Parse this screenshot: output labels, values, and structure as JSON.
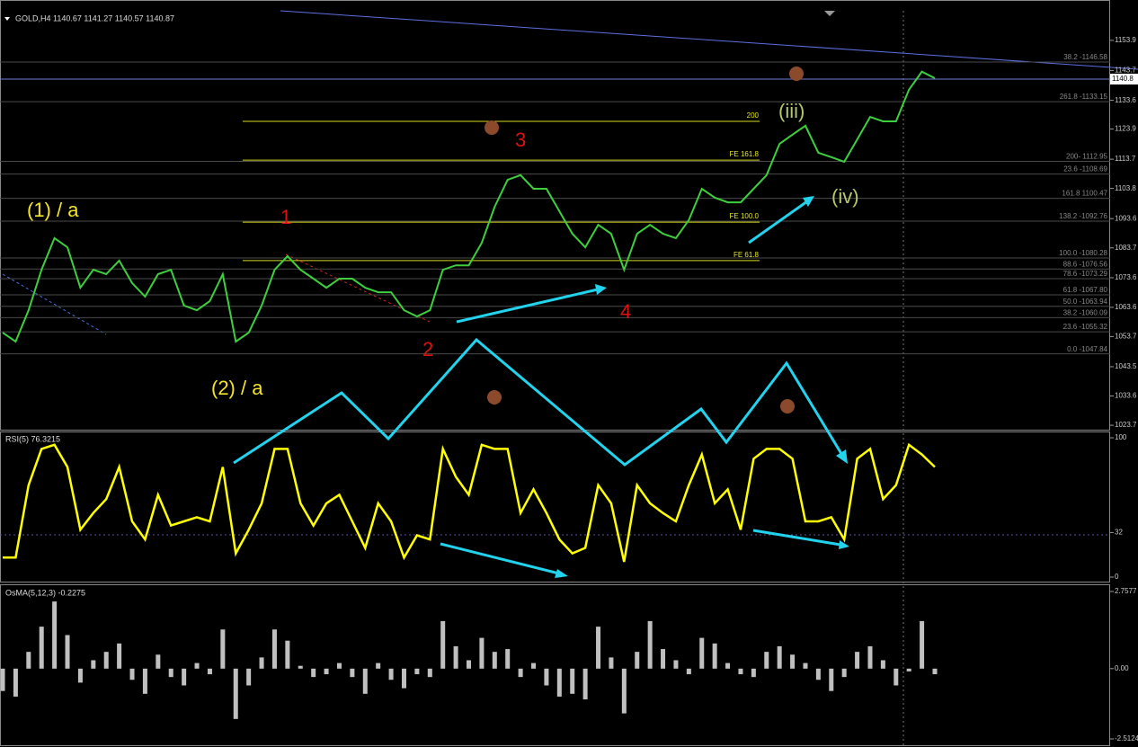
{
  "chart_data": [
    {
      "type": "line",
      "title": "GOLD,H4  1140.67 1141.27 1140.57 1140.87",
      "color": "#3ecf3e",
      "values": [
        1055.0,
        1052.0,
        1062.6,
        1076.3,
        1087.0,
        1083.9,
        1070.2,
        1076.3,
        1074.8,
        1079.4,
        1071.8,
        1067.2,
        1074.8,
        1076.3,
        1064.2,
        1062.6,
        1065.7,
        1074.8,
        1052.0,
        1055.0,
        1064.2,
        1076.3,
        1080.9,
        1076.3,
        1073.3,
        1070.2,
        1073.3,
        1073.3,
        1070.2,
        1068.7,
        1068.7,
        1062.6,
        1060.5,
        1062.6,
        1076.3,
        1077.8,
        1077.8,
        1085.4,
        1097.6,
        1106.7,
        1108.3,
        1103.7,
        1103.7,
        1096.1,
        1088.5,
        1083.9,
        1091.5,
        1088.5,
        1076.3,
        1088.5,
        1091.5,
        1088.5,
        1087.0,
        1093.1,
        1103.7,
        1100.7,
        1099.1,
        1099.1,
        1103.7,
        1108.3,
        1118.9,
        1122.0,
        1125.0,
        1115.9,
        1114.4,
        1112.8,
        1120.4,
        1128.0,
        1126.5,
        1126.5,
        1137.2,
        1143.3,
        1141.1
      ],
      "ylim": [
        1022.2,
        1163.9
      ],
      "yticks": [
        1153.9,
        1143.7,
        1133.6,
        1123.9,
        1113.7,
        1103.8,
        1093.6,
        1083.7,
        1073.6,
        1063.6,
        1053.7,
        1043.5,
        1033.6,
        1023.7
      ],
      "last_price": 1140.8,
      "fib_levels": [
        {
          "value": 1146.58,
          "label": "38.2 -1146.58"
        },
        {
          "value": 1133.15,
          "label": "261.8 -1133.15"
        },
        {
          "value": 1112.95,
          "label": "200- 1112.95"
        },
        {
          "value": 1108.69,
          "label": "23.6 -1108.69"
        },
        {
          "value": 1100.47,
          "label": "161.8 1100.47"
        },
        {
          "value": 1092.76,
          "label": "138.2 -1092.76"
        },
        {
          "value": 1080.28,
          "label": "100.0 -1080.28"
        },
        {
          "value": 1076.56,
          "label": "88.6 -1076.56"
        },
        {
          "value": 1073.29,
          "label": "78.6 -1073.29"
        },
        {
          "value": 1067.8,
          "label": "61.8 -1067.80"
        },
        {
          "value": 1063.94,
          "label": "50.0 -1063.94"
        },
        {
          "value": 1060.09,
          "label": "38.2 -1060.09"
        },
        {
          "value": 1055.32,
          "label": "23.6 -1055.32"
        },
        {
          "value": 1047.84,
          "label": "0.0 -1047.84"
        }
      ],
      "fe_levels": [
        {
          "value": 1126.5,
          "label": "200"
        },
        {
          "value": 1113.4,
          "label": "FE 161.8"
        },
        {
          "value": 1092.4,
          "label": "FE 100.0"
        },
        {
          "value": 1079.4,
          "label": "FE 61.8"
        }
      ],
      "wave_labels": [
        "(1) / a",
        "(2) / a",
        "1",
        "2",
        "3",
        "4",
        "(iii)",
        "(iv)"
      ]
    },
    {
      "type": "line",
      "title": "RSI(5) 76.3215",
      "color": "#ffff00",
      "values": [
        14,
        14,
        66,
        92,
        95,
        79,
        34,
        46,
        56,
        79,
        40,
        27,
        59,
        37,
        40,
        43,
        40,
        79,
        17,
        34,
        53,
        92,
        92,
        53,
        37,
        53,
        59,
        40,
        21,
        53,
        40,
        14,
        30,
        27,
        92,
        72,
        59,
        95,
        92,
        92,
        46,
        63,
        46,
        27,
        17,
        21,
        66,
        53,
        11,
        66,
        53,
        46,
        40,
        66,
        88,
        53,
        63,
        34,
        85,
        92,
        92,
        85,
        40,
        40,
        43,
        27,
        85,
        92,
        56,
        66,
        95,
        88,
        79
      ],
      "ylim": [
        0,
        100
      ],
      "yticks": [
        100,
        32,
        0
      ]
    },
    {
      "type": "bar",
      "title": "OsMA(5,12,3) -0.2275",
      "color": "#c0c0c0",
      "values": [
        -0.8,
        -1.0,
        0.6,
        1.5,
        2.4,
        1.2,
        -0.5,
        0.3,
        0.6,
        0.9,
        -0.4,
        -0.9,
        0.5,
        -0.3,
        -0.6,
        0.2,
        -0.2,
        1.4,
        -1.8,
        -0.6,
        0.4,
        1.4,
        1.0,
        0.1,
        -0.3,
        -0.2,
        0.2,
        -0.3,
        -0.9,
        0.2,
        -0.4,
        -0.7,
        -0.2,
        -0.3,
        1.7,
        0.8,
        0.3,
        1.1,
        0.6,
        0.7,
        -0.3,
        0.2,
        -0.6,
        -1.0,
        -0.9,
        -1.1,
        1.5,
        0.4,
        -1.6,
        0.6,
        1.7,
        0.7,
        0.3,
        -0.2,
        1.1,
        0.9,
        0.2,
        -0.2,
        -0.3,
        0.6,
        0.8,
        0.5,
        0.2,
        -0.4,
        -0.8,
        -0.3,
        0.6,
        0.8,
        0.3,
        -0.6,
        -0.1,
        1.7,
        -0.2
      ],
      "ylim": [
        -2.5124,
        2.7577
      ],
      "yticks": [
        2.7577,
        {
          "value": 0,
          "label": "0.00"
        },
        -2.5124
      ]
    }
  ]
}
